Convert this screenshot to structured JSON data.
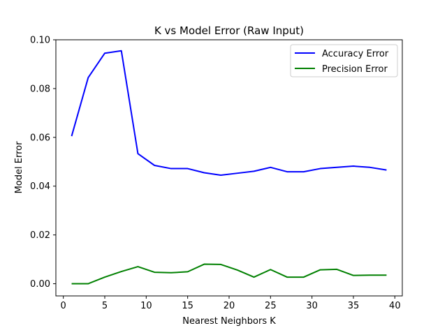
{
  "chart_data": {
    "type": "line",
    "title": "K vs Model Error (Raw Input)",
    "xlabel": "Nearest Neighbors K",
    "ylabel": "Model Error",
    "xlim": [
      -0.9,
      40.9
    ],
    "ylim": [
      -0.005,
      0.1
    ],
    "xticks": [
      0,
      5,
      10,
      15,
      20,
      25,
      30,
      35,
      40
    ],
    "yticks": [
      0.0,
      0.02,
      0.04,
      0.06,
      0.08,
      0.1
    ],
    "ytick_labels": [
      "0.00",
      "0.02",
      "0.04",
      "0.06",
      "0.08",
      "0.10"
    ],
    "grid": false,
    "legend_position": "upper right",
    "x": [
      1,
      3,
      5,
      7,
      9,
      11,
      13,
      15,
      17,
      19,
      21,
      23,
      25,
      27,
      29,
      31,
      33,
      35,
      37,
      39
    ],
    "series": [
      {
        "name": "Accuracy Error",
        "color": "#0000ff",
        "values": [
          0.0605,
          0.0845,
          0.0945,
          0.0955,
          0.0533,
          0.0485,
          0.0472,
          0.0472,
          0.0455,
          0.0445,
          0.0453,
          0.0461,
          0.0477,
          0.0459,
          0.0459,
          0.0472,
          0.0477,
          0.0482,
          0.0477,
          0.0466
        ]
      },
      {
        "name": "Precision Error",
        "color": "#008000",
        "values": [
          0.0,
          0.0,
          0.0027,
          0.005,
          0.007,
          0.0047,
          0.0045,
          0.0049,
          0.008,
          0.0079,
          0.0056,
          0.0027,
          0.0058,
          0.0027,
          0.0027,
          0.0057,
          0.0059,
          0.0034,
          0.0035,
          0.0035
        ]
      }
    ]
  }
}
